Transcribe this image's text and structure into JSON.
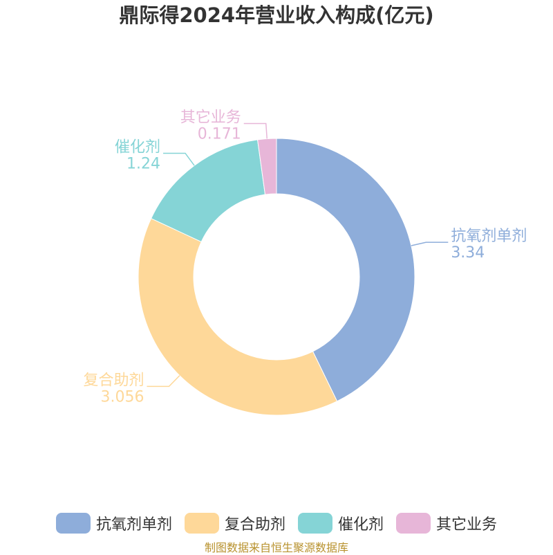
{
  "chart_data": {
    "type": "pie",
    "variant": "donut",
    "title": "鼎际得2024年营业收入构成(亿元)",
    "categories": [
      "抗氧剂单剂",
      "复合助剂",
      "催化剂",
      "其它业务"
    ],
    "values": [
      3.34,
      3.056,
      1.24,
      0.171
    ],
    "value_labels": [
      "3.34",
      "3.056",
      "1.24",
      "0.171"
    ],
    "colors": [
      "#8eadda",
      "#fed899",
      "#85d4d6",
      "#e7b6d8"
    ],
    "legend_position": "bottom"
  },
  "source": "制图数据来自恒生聚源数据库"
}
